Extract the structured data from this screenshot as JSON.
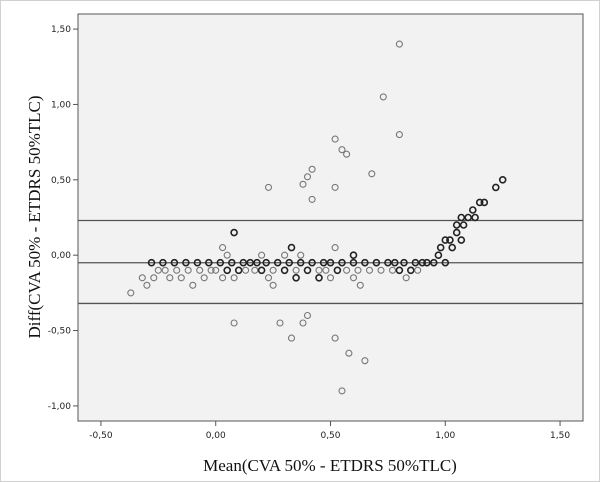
{
  "chart_data": {
    "type": "scatter",
    "title": "",
    "xlabel": "Mean(CVA 50% - ETDRS 50%TLC)",
    "ylabel": "Diff(CVA 50% - ETDRS 50%TLC)",
    "xlim": [
      -0.6,
      1.6
    ],
    "ylim": [
      -1.1,
      1.6
    ],
    "x_ticks": [
      "-0,50",
      "0,00",
      "0,50",
      "1,00",
      "1,50"
    ],
    "x_tick_values": [
      -0.5,
      0.0,
      0.5,
      1.0,
      1.5
    ],
    "y_ticks": [
      "1,50",
      "1,00",
      "0,50",
      "0,00",
      "-0,50",
      "-1,00"
    ],
    "y_tick_values": [
      1.5,
      1.0,
      0.5,
      0.0,
      -0.5,
      -1.0
    ],
    "reference_lines": {
      "mean_difference": -0.05,
      "upper_limit": 0.23,
      "lower_limit": -0.32
    },
    "grid": false,
    "legend": "none",
    "colors": {
      "plot_background": "#f2f2f2",
      "marker_dark": "#222222",
      "marker_light": "#777777",
      "reference_line": "#555555"
    },
    "series": [
      {
        "marker": "open-circle",
        "points": [
          [
            -0.37,
            -0.25
          ],
          [
            -0.32,
            -0.15
          ],
          [
            -0.3,
            -0.2
          ],
          [
            -0.28,
            -0.05
          ],
          [
            -0.27,
            -0.15
          ],
          [
            -0.25,
            -0.1
          ],
          [
            -0.23,
            -0.05
          ],
          [
            -0.22,
            -0.1
          ],
          [
            -0.2,
            -0.15
          ],
          [
            -0.18,
            -0.05
          ],
          [
            -0.17,
            -0.1
          ],
          [
            -0.15,
            -0.15
          ],
          [
            -0.13,
            -0.05
          ],
          [
            -0.12,
            -0.1
          ],
          [
            -0.1,
            -0.2
          ],
          [
            -0.08,
            -0.05
          ],
          [
            -0.07,
            -0.1
          ],
          [
            -0.05,
            -0.15
          ],
          [
            -0.03,
            -0.05
          ],
          [
            -0.02,
            -0.1
          ],
          [
            0.0,
            -0.1
          ],
          [
            0.02,
            -0.05
          ],
          [
            0.03,
            0.05
          ],
          [
            0.03,
            -0.15
          ],
          [
            0.05,
            -0.1
          ],
          [
            0.05,
            0.0
          ],
          [
            0.07,
            -0.05
          ],
          [
            0.08,
            0.15
          ],
          [
            0.08,
            -0.15
          ],
          [
            0.08,
            -0.45
          ],
          [
            0.1,
            -0.1
          ],
          [
            0.12,
            -0.05
          ],
          [
            0.13,
            -0.1
          ],
          [
            0.15,
            -0.05
          ],
          [
            0.17,
            -0.1
          ],
          [
            0.18,
            -0.05
          ],
          [
            0.2,
            -0.1
          ],
          [
            0.2,
            0.0
          ],
          [
            0.22,
            -0.05
          ],
          [
            0.23,
            0.45
          ],
          [
            0.23,
            -0.15
          ],
          [
            0.25,
            -0.1
          ],
          [
            0.25,
            -0.2
          ],
          [
            0.27,
            -0.05
          ],
          [
            0.28,
            -0.45
          ],
          [
            0.3,
            -0.1
          ],
          [
            0.3,
            0.0
          ],
          [
            0.32,
            -0.05
          ],
          [
            0.33,
            0.05
          ],
          [
            0.33,
            -0.55
          ],
          [
            0.35,
            -0.1
          ],
          [
            0.35,
            -0.15
          ],
          [
            0.37,
            0.0
          ],
          [
            0.37,
            -0.05
          ],
          [
            0.38,
            0.47
          ],
          [
            0.38,
            -0.45
          ],
          [
            0.4,
            0.52
          ],
          [
            0.4,
            -0.1
          ],
          [
            0.4,
            -0.4
          ],
          [
            0.42,
            0.57
          ],
          [
            0.42,
            0.37
          ],
          [
            0.42,
            -0.05
          ],
          [
            0.45,
            -0.1
          ],
          [
            0.45,
            -0.15
          ],
          [
            0.47,
            -0.05
          ],
          [
            0.48,
            -0.1
          ],
          [
            0.5,
            -0.05
          ],
          [
            0.5,
            -0.15
          ],
          [
            0.52,
            0.77
          ],
          [
            0.52,
            0.45
          ],
          [
            0.52,
            0.05
          ],
          [
            0.52,
            -0.55
          ],
          [
            0.53,
            -0.1
          ],
          [
            0.55,
            0.7
          ],
          [
            0.55,
            -0.05
          ],
          [
            0.55,
            -0.9
          ],
          [
            0.57,
            0.67
          ],
          [
            0.57,
            -0.1
          ],
          [
            0.58,
            -0.65
          ],
          [
            0.6,
            -0.05
          ],
          [
            0.6,
            -0.15
          ],
          [
            0.6,
            0.0
          ],
          [
            0.62,
            -0.1
          ],
          [
            0.63,
            -0.2
          ],
          [
            0.65,
            -0.05
          ],
          [
            0.65,
            -0.7
          ],
          [
            0.67,
            -0.1
          ],
          [
            0.68,
            0.54
          ],
          [
            0.7,
            -0.05
          ],
          [
            0.72,
            -0.1
          ],
          [
            0.73,
            1.05
          ],
          [
            0.75,
            -0.05
          ],
          [
            0.77,
            -0.1
          ],
          [
            0.78,
            -0.05
          ],
          [
            0.8,
            1.4
          ],
          [
            0.8,
            0.8
          ],
          [
            0.8,
            -0.1
          ],
          [
            0.82,
            -0.05
          ],
          [
            0.83,
            -0.15
          ],
          [
            0.85,
            -0.1
          ],
          [
            0.87,
            -0.05
          ],
          [
            0.88,
            -0.1
          ],
          [
            0.9,
            -0.05
          ],
          [
            0.92,
            -0.05
          ],
          [
            0.95,
            -0.05
          ],
          [
            0.97,
            0.0
          ],
          [
            0.98,
            0.05
          ],
          [
            1.0,
            0.1
          ],
          [
            1.0,
            -0.05
          ],
          [
            1.02,
            0.1
          ],
          [
            1.03,
            0.05
          ],
          [
            1.05,
            0.2
          ],
          [
            1.05,
            0.15
          ],
          [
            1.07,
            0.25
          ],
          [
            1.07,
            0.1
          ],
          [
            1.08,
            0.2
          ],
          [
            1.1,
            0.25
          ],
          [
            1.12,
            0.3
          ],
          [
            1.13,
            0.25
          ],
          [
            1.15,
            0.35
          ],
          [
            1.17,
            0.35
          ],
          [
            1.22,
            0.45
          ],
          [
            1.25,
            0.5
          ]
        ]
      }
    ]
  }
}
